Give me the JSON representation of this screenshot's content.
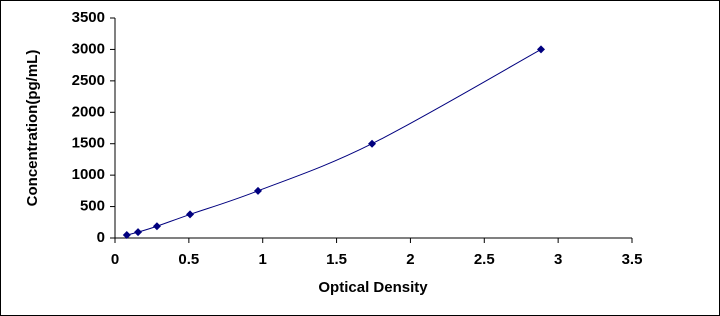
{
  "chart_data": {
    "type": "line",
    "x_label": "Optical Density",
    "y_label": "Concentration(pg/mL)",
    "series": [
      {
        "color": "#00007f",
        "x": [
          0.08,
          0.156,
          0.284,
          0.508,
          0.968,
          1.74,
          2.884
        ],
        "values": [
          46.875,
          93.75,
          187.5,
          375,
          750,
          1500,
          3000
        ]
      }
    ],
    "xlim": [
      0,
      3.5
    ],
    "xticks": [
      0,
      0.5,
      1,
      1.5,
      2,
      2.5,
      3,
      3.5
    ],
    "ylim": [
      0,
      3500
    ],
    "yticks": [
      0,
      500,
      1000,
      1500,
      2000,
      2500,
      3000,
      3500
    ],
    "grid": false
  }
}
